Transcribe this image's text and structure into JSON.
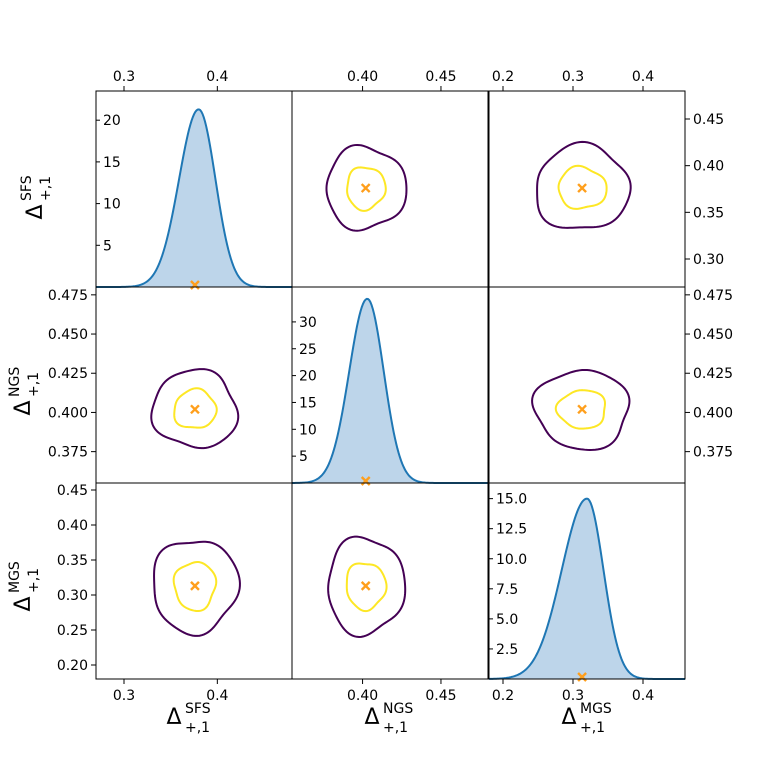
{
  "chart_data": {
    "type": "corner",
    "title": "",
    "parameters": [
      {
        "id": "sfs",
        "symbol": "Δ",
        "sub": "+,1",
        "sup": "SFS"
      },
      {
        "id": "ngs",
        "symbol": "Δ",
        "sub": "+,1",
        "sup": "NGS"
      },
      {
        "id": "mgs",
        "symbol": "Δ",
        "sub": "+,1",
        "sup": "MGS"
      }
    ],
    "axis_ranges": {
      "sfs": [
        0.27,
        0.48
      ],
      "ngs": [
        0.355,
        0.48
      ],
      "mgs": [
        0.18,
        0.46
      ]
    },
    "axis_ticks": {
      "sfs": [
        "0.3",
        "0.4"
      ],
      "ngs": [
        "0.40",
        "0.45"
      ],
      "mgs": [
        "0.2",
        "0.3",
        "0.4"
      ]
    },
    "left_y_ticks": {
      "ngs": [
        "0.375",
        "0.400",
        "0.425",
        "0.450",
        "0.475"
      ],
      "mgs": [
        "0.20",
        "0.25",
        "0.30",
        "0.35",
        "0.40",
        "0.45"
      ]
    },
    "right_y_ticks": {
      "sfs": [
        "0.30",
        "0.35",
        "0.40",
        "0.45"
      ],
      "ngs": [
        "0.375",
        "0.400",
        "0.425",
        "0.450",
        "0.475"
      ]
    },
    "density_ticks": {
      "sfs": [
        "5",
        "10",
        "15",
        "20"
      ],
      "ngs": [
        "5",
        "10",
        "15",
        "20",
        "25",
        "30"
      ],
      "mgs": [
        "2.5",
        "5.0",
        "7.5",
        "10.0",
        "12.5",
        "15.0"
      ]
    },
    "density_ranges": {
      "sfs": [
        0,
        23.5
      ],
      "ngs": [
        0,
        36.5
      ],
      "mgs": [
        0,
        16.3
      ]
    },
    "densities": [
      {
        "param": "sfs",
        "mean": 0.38,
        "sigma_left": 0.021,
        "sigma_right": 0.018,
        "peak": 21.3
      },
      {
        "param": "ngs",
        "mean": 0.403,
        "sigma_left": 0.0115,
        "sigma_right": 0.0105,
        "peak": 34.3
      },
      {
        "param": "mgs",
        "mean": 0.32,
        "sigma_left": 0.036,
        "sigma_right": 0.0235,
        "peak": 15.0
      }
    ],
    "best_fit": {
      "sfs": 0.376,
      "ngs": 0.402,
      "mgs": 0.313
    },
    "contour_levels": [
      {
        "name": "inner",
        "color": "#fde725",
        "nsigma": 1.0
      },
      {
        "name": "outer",
        "color": "#440154",
        "nsigma": 2.0
      }
    ],
    "posterior_sigma": {
      "sfs": 0.0225,
      "ngs": 0.0125,
      "mgs": 0.034
    },
    "colors": {
      "density_line": "#1f77b4",
      "density_fill": "#bdd5ea",
      "marker": "#ff9f1c",
      "inner_contour": "#fde725",
      "outer_contour": "#440154",
      "frame": "#000000"
    }
  }
}
